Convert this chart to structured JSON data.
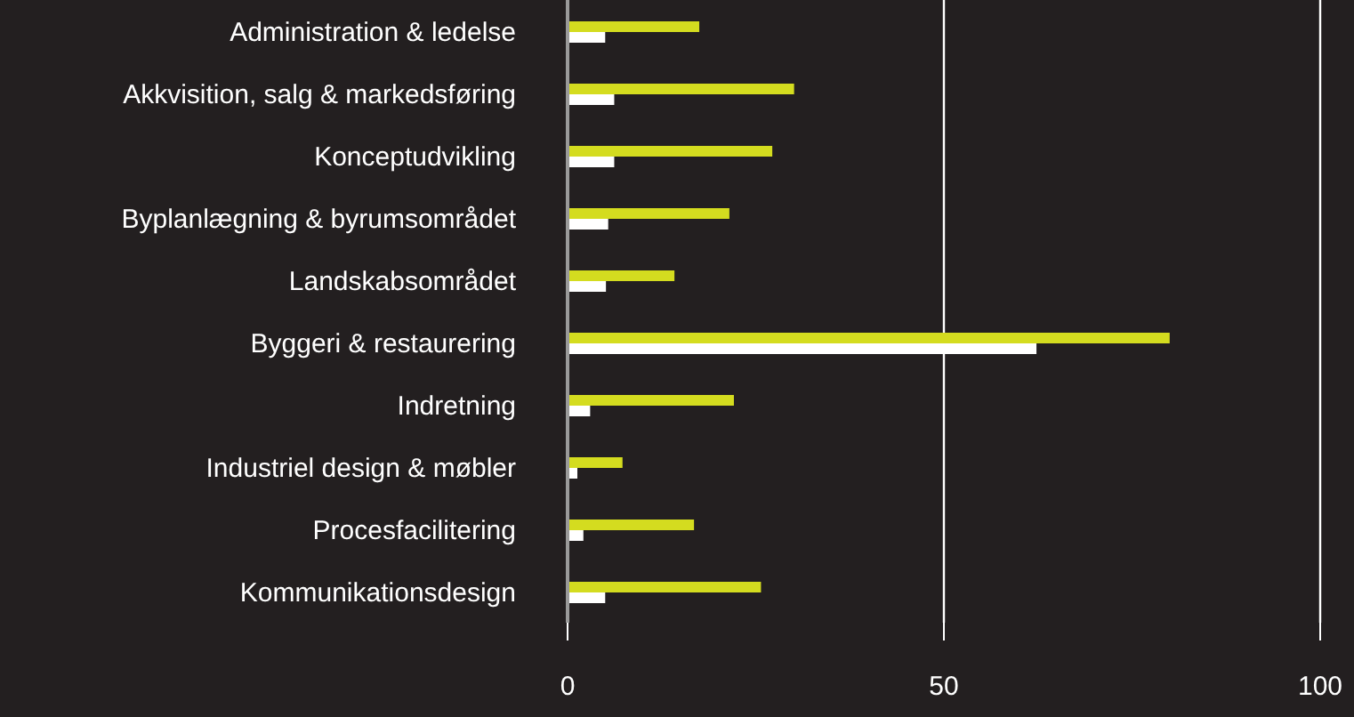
{
  "chart_data": {
    "type": "bar",
    "orientation": "horizontal",
    "categories": [
      "Administration & ledelse",
      "Akkvisition, salg & markedsføring",
      "Konceptudvikling",
      "Byplanlægning & byrumsområdet",
      "Landskabsområdet",
      "Byggeri & restaurering",
      "Indretning",
      "Industriel design & møbler",
      "Procesfacilitering",
      "Kommunikationsdesign"
    ],
    "series": [
      {
        "color": "#d4dc1f",
        "values": [
          17.5,
          30.1,
          27.2,
          21.5,
          14.2,
          80,
          22.1,
          7.3,
          16.8,
          25.7
        ]
      },
      {
        "color": "#ffffff",
        "values": [
          5.0,
          6.2,
          6.2,
          5.4,
          5.1,
          62.3,
          3.0,
          1.3,
          2.1,
          5.0
        ]
      }
    ],
    "xlim": [
      0,
      100
    ],
    "xticks": [
      0,
      50,
      100
    ],
    "grid": "x",
    "legend": false
  }
}
